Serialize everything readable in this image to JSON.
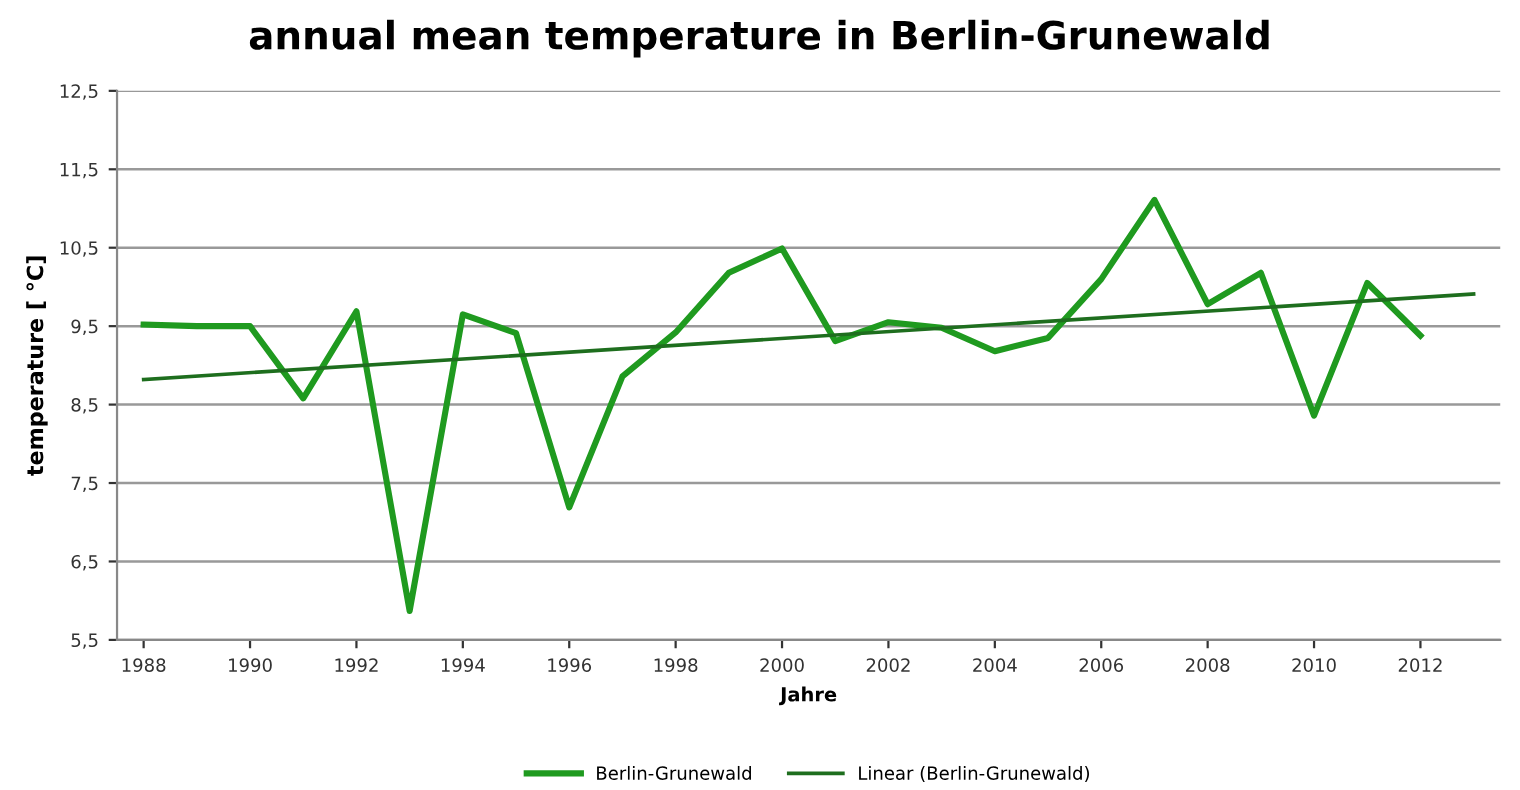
{
  "chart_data": {
    "type": "line",
    "title": "annual mean temperature in Berlin-Grunewald",
    "xlabel": "Jahre",
    "ylabel": "temperature [ °C]",
    "x": [
      1988,
      1989,
      1990,
      1991,
      1992,
      1993,
      1994,
      1995,
      1996,
      1997,
      1998,
      1999,
      2000,
      2001,
      2002,
      2003,
      2004,
      2005,
      2006,
      2007,
      2008,
      2009,
      2010,
      2011,
      2012
    ],
    "series": [
      {
        "name": "Berlin-Grunewald",
        "color": "#1f9a1f",
        "values": [
          9.52,
          9.5,
          9.5,
          8.58,
          9.69,
          5.87,
          9.65,
          9.41,
          7.19,
          8.86,
          9.42,
          10.18,
          10.49,
          9.31,
          9.55,
          9.48,
          9.18,
          9.35,
          10.1,
          11.11,
          9.78,
          10.18,
          8.36,
          10.05,
          9.38
        ]
      },
      {
        "name": "Linear (Berlin-Grunewald)",
        "color": "#1e6e1e",
        "x": [
          1988,
          2013
        ],
        "values": [
          8.82,
          9.91
        ]
      }
    ],
    "xlim": [
      1987.5,
      2013.5
    ],
    "xticks": [
      1988,
      1990,
      1992,
      1994,
      1996,
      1998,
      2000,
      2002,
      2004,
      2006,
      2008,
      2010,
      2012
    ],
    "ylim": [
      5.5,
      12.5
    ],
    "yticks": [
      {
        "value": 5.5,
        "label": "5,5"
      },
      {
        "value": 6.5,
        "label": "6,5"
      },
      {
        "value": 7.5,
        "label": "7,5"
      },
      {
        "value": 8.5,
        "label": "8,5"
      },
      {
        "value": 9.5,
        "label": "9,5"
      },
      {
        "value": 10.5,
        "label": "10,5"
      },
      {
        "value": 11.5,
        "label": "11,5"
      },
      {
        "value": 12.5,
        "label": "12,5"
      }
    ],
    "grid": "y",
    "legend": "bottom",
    "marker": "none",
    "line_style": "solid"
  }
}
